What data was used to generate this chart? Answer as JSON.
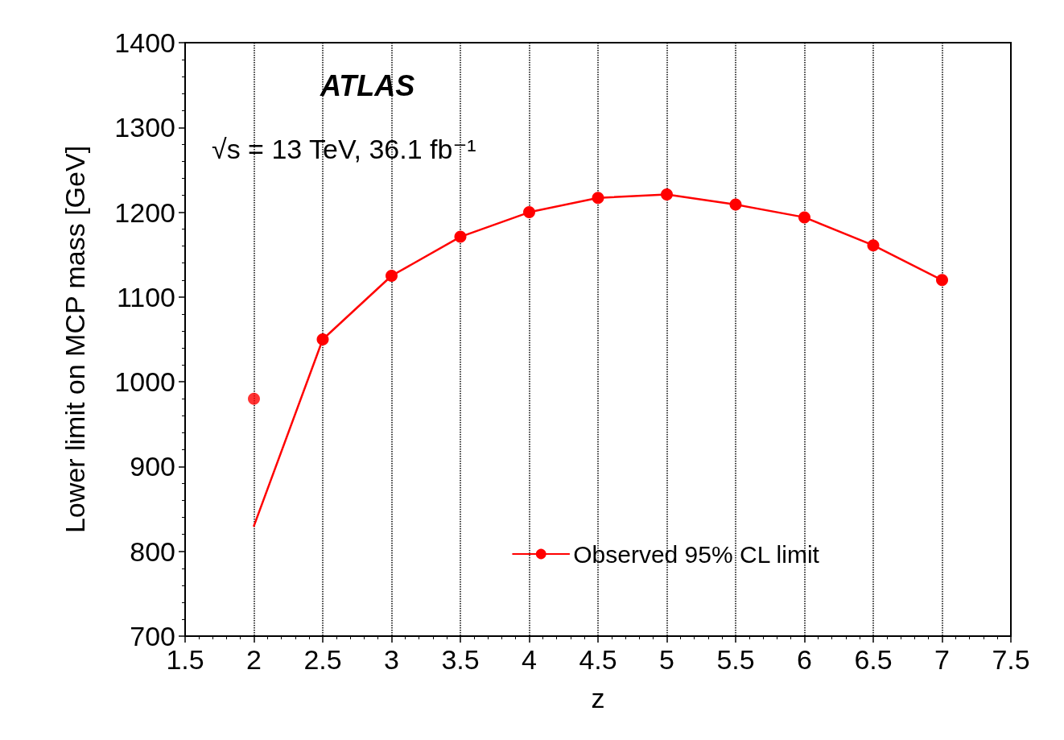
{
  "chart_data": {
    "type": "line",
    "xlabel": "z",
    "ylabel": "Lower limit on MCP mass [GeV]",
    "annotations": [
      "ATLAS",
      "√s = 13 TeV, 36.1 fb⁻¹"
    ],
    "series": [
      {
        "x": [
          2,
          2.5
        ],
        "values": [
          830,
          1050
        ],
        "color": "#ff0000"
      },
      {
        "type": "scatter",
        "x": [
          2
        ],
        "values": [
          980
        ],
        "color": "#ff0000",
        "marker": "circle"
      },
      {
        "name": "Observed 95% CL limit",
        "x": [
          2.5,
          3,
          3.5,
          4,
          4.5,
          5,
          5.5,
          6,
          6.5,
          7
        ],
        "values": [
          1050,
          1125,
          1171,
          1200,
          1217,
          1221,
          1209,
          1194,
          1161,
          1120
        ],
        "color": "#ff0000",
        "marker": "circle"
      }
    ],
    "xlim": [
      1.5,
      7.5
    ],
    "xticks": [
      1.5,
      2,
      2.5,
      3,
      3.5,
      4,
      4.5,
      5,
      5.5,
      6,
      6.5,
      7,
      7.5
    ],
    "ylim": [
      700,
      1400
    ],
    "yticks": [
      700,
      800,
      900,
      1000,
      1100,
      1200,
      1300,
      1400
    ],
    "grid": "x",
    "legend": "bottom right",
    "line_style": "solid"
  }
}
